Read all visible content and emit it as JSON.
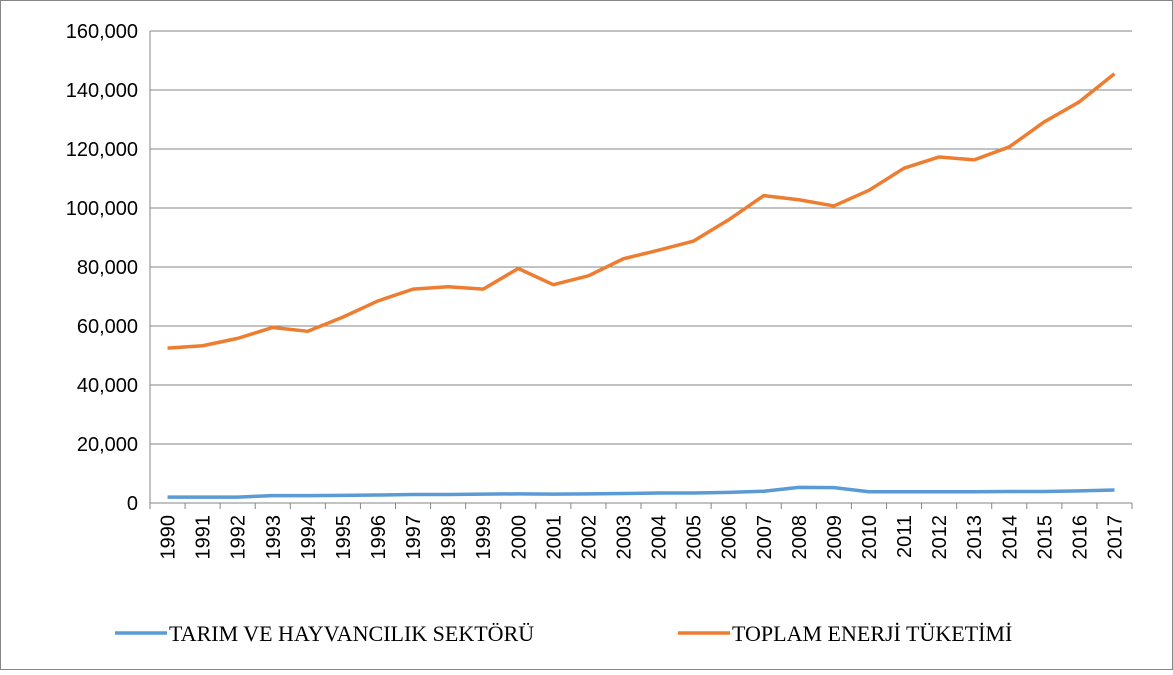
{
  "chart_data": {
    "type": "line",
    "categories": [
      "1990",
      "1991",
      "1992",
      "1993",
      "1994",
      "1995",
      "1996",
      "1997",
      "1998",
      "1999",
      "2000",
      "2001",
      "2002",
      "2003",
      "2004",
      "2005",
      "2006",
      "2007",
      "2008",
      "2009",
      "2010",
      "2011",
      "2012",
      "2013",
      "2014",
      "2015",
      "2016",
      "2017"
    ],
    "series": [
      {
        "name": "TARIM VE HAYVANCILIK SEKTÖRÜ",
        "color": "#5b9bd5",
        "values": [
          2000,
          2000,
          2000,
          2500,
          2500,
          2600,
          2700,
          2900,
          2900,
          3000,
          3100,
          3000,
          3100,
          3200,
          3400,
          3400,
          3600,
          4000,
          5300,
          5200,
          3800,
          3800,
          3800,
          3800,
          3900,
          3900,
          4100,
          4400
        ]
      },
      {
        "name": "TOPLAM ENERJİ TÜKETİMİ",
        "color": "#ed7d31",
        "values": [
          52500,
          53300,
          55800,
          59500,
          58200,
          63000,
          68500,
          72500,
          73300,
          72500,
          79500,
          74000,
          77000,
          82800,
          85700,
          88800,
          96000,
          104200,
          102800,
          100700,
          106000,
          113500,
          117300,
          116300,
          120700,
          129200,
          136000,
          145500
        ]
      }
    ],
    "ylim": [
      0,
      160000
    ],
    "yticks": [
      0,
      {
        "value": 20000,
        "label": "20,000"
      },
      {
        "value": 40000,
        "label": "40,000"
      },
      {
        "value": 60000,
        "label": "60,000"
      },
      {
        "value": 80000,
        "label": "80,000"
      },
      {
        "value": 100000,
        "label": "100,000"
      },
      {
        "value": 120000,
        "label": "120,000"
      },
      {
        "value": 140000,
        "label": "140,000"
      },
      {
        "value": 160000,
        "label": "160,000"
      }
    ],
    "grid": true,
    "legend": "bottom"
  }
}
